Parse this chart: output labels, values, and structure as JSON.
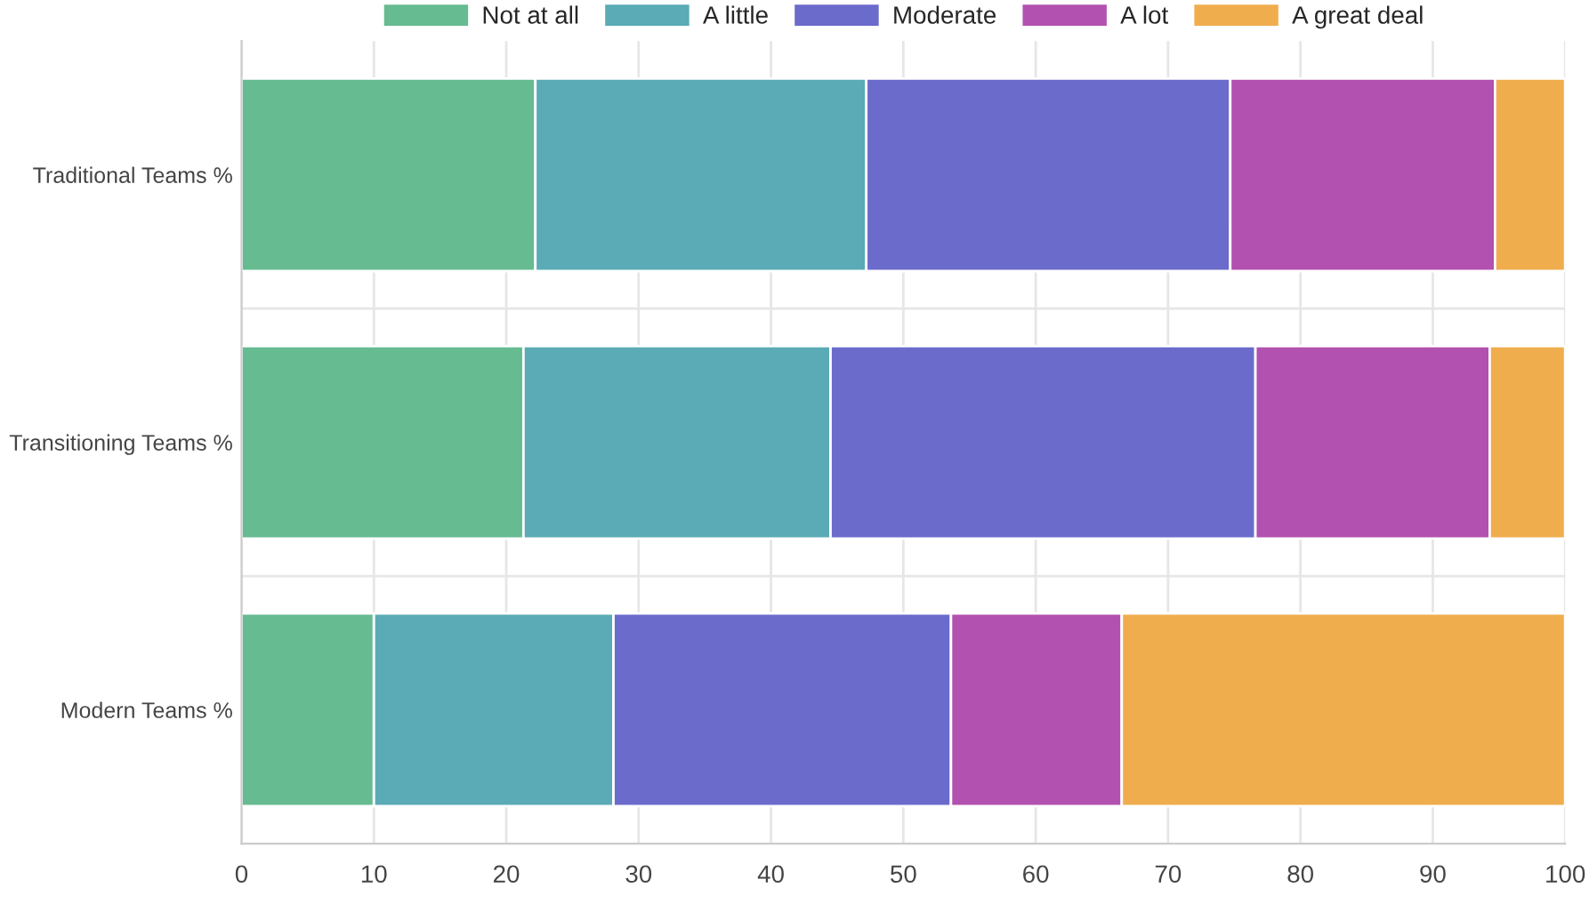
{
  "chart_data": {
    "type": "bar",
    "orientation": "horizontal",
    "stacked": true,
    "categories": [
      "Traditional Teams %",
      "Transitioning Teams %",
      "Modern Teams %"
    ],
    "series": [
      {
        "name": "Not at all",
        "color": "#66bb91",
        "values": [
          22.2,
          21.3,
          10.0
        ]
      },
      {
        "name": "A little",
        "color": "#5aabb5",
        "values": [
          25.0,
          23.2,
          18.1
        ]
      },
      {
        "name": "Moderate",
        "color": "#6b6bcc",
        "values": [
          27.5,
          32.1,
          25.5
        ]
      },
      {
        "name": "A lot",
        "color": "#b251b0",
        "values": [
          20.0,
          17.7,
          12.9
        ]
      },
      {
        "name": "A great deal",
        "color": "#f0ad4e",
        "values": [
          5.3,
          5.7,
          33.5
        ]
      }
    ],
    "xlim": [
      0,
      100
    ],
    "xticks": [
      0,
      10,
      20,
      30,
      40,
      50,
      60,
      70,
      80,
      90,
      100
    ],
    "grid": "x",
    "legend": "top"
  }
}
